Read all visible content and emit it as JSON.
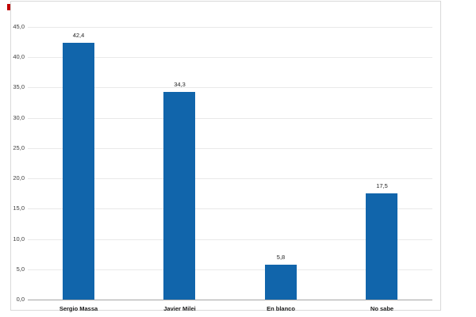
{
  "marker": {
    "color": "#c00000"
  },
  "chart_data": {
    "type": "bar",
    "categories": [
      "Sergio Massa",
      "Javier Milei",
      "En blanco",
      "No sabe"
    ],
    "values": [
      42.4,
      34.3,
      5.8,
      17.5
    ],
    "value_labels": [
      "42,4",
      "34,3",
      "5,8",
      "17,5"
    ],
    "y_tick_labels": [
      "45,0",
      "40,0",
      "35,0",
      "30,0",
      "25,0",
      "20,0",
      "15,0",
      "10,0",
      "5,0",
      "0,0"
    ],
    "ylim": [
      0,
      45
    ],
    "y_tick_step": 5,
    "bar_color": "#1165ab",
    "grid": "horizontal",
    "legend": "none",
    "title": "",
    "xlabel": "",
    "ylabel": ""
  }
}
